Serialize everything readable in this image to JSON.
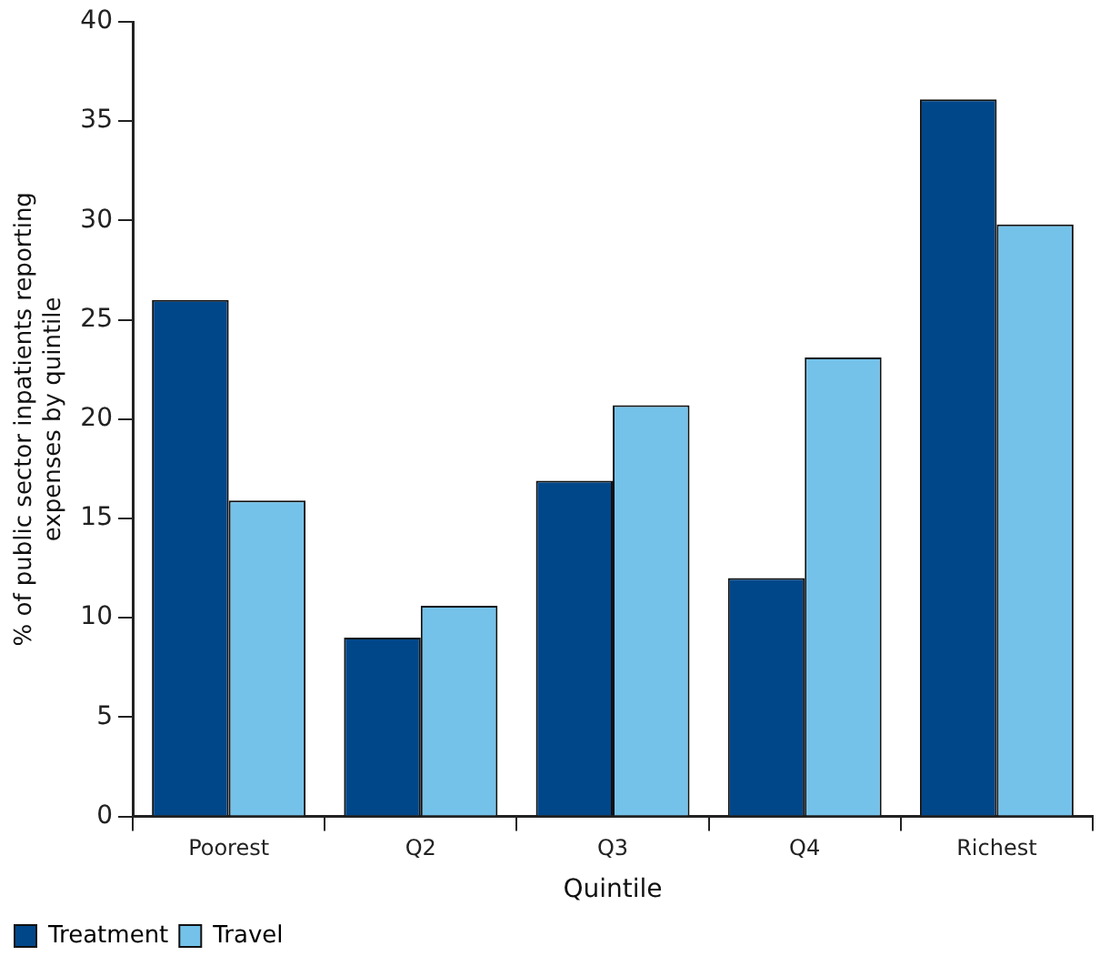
{
  "chart_data": {
    "type": "bar",
    "xlabel": "Quintile",
    "ylabel": "% of public sector inpatients reporting\nexpenses by quintile",
    "categories": [
      "Poorest",
      "Q2",
      "Q3",
      "Q4",
      "Richest"
    ],
    "series": [
      {
        "name": "Treatment",
        "color": "#00478a",
        "values": [
          26.0,
          9.0,
          16.9,
          12.0,
          36.1
        ]
      },
      {
        "name": "Travel",
        "color": "#74c2ea",
        "values": [
          15.9,
          10.6,
          20.7,
          23.1,
          29.8
        ]
      }
    ],
    "ylim": [
      0,
      40
    ],
    "yticks": [
      0,
      5,
      10,
      15,
      20,
      25,
      30,
      35,
      40
    ],
    "grid": false,
    "legend": "bottom left"
  }
}
